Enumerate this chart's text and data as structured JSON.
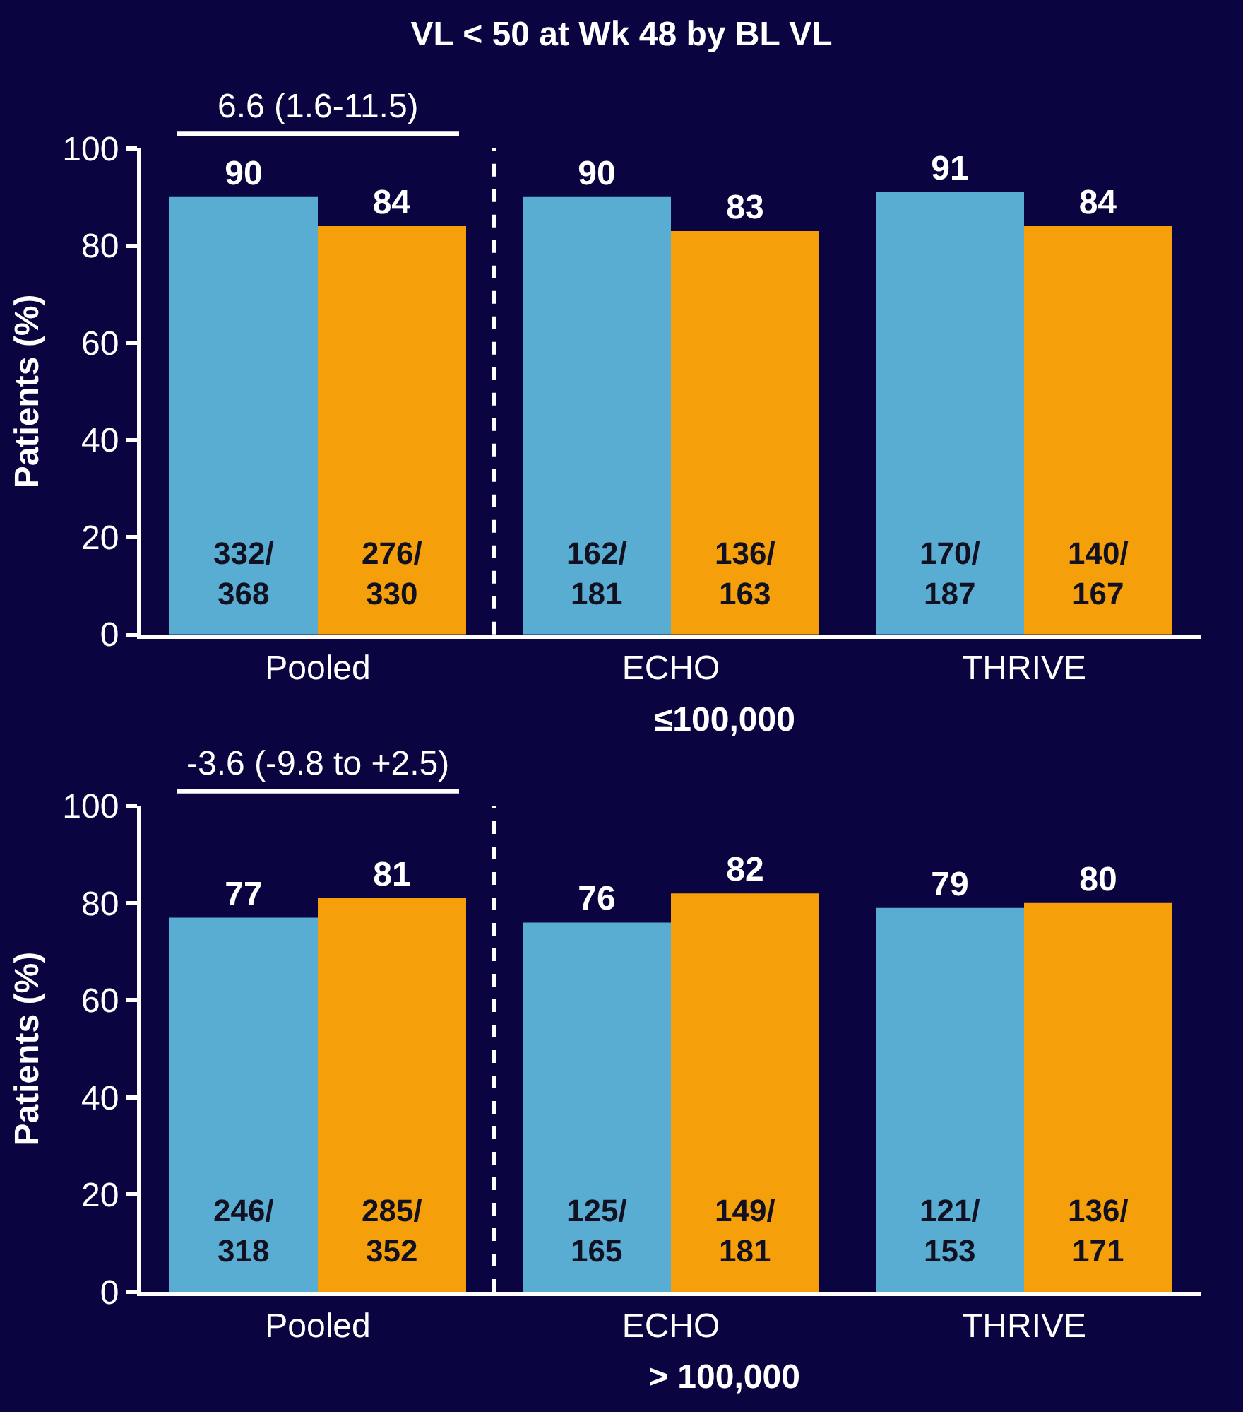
{
  "chart_data": [
    {
      "type": "bar",
      "title": "VL < 50 at Wk 48 by BL VL",
      "xlabel": "≤100,000",
      "ylabel": "Patients (%)",
      "categories": [
        "Pooled",
        "ECHO",
        "THRIVE"
      ],
      "series": [
        {
          "color": "#5aadd2",
          "values": [
            90,
            90,
            91
          ]
        },
        {
          "color": "#f5a00a",
          "values": [
            84,
            83,
            84
          ]
        }
      ],
      "ylim": [
        0,
        100
      ],
      "yticks": [
        0,
        20,
        40,
        60,
        80,
        100
      ],
      "data_labels": true,
      "annotations": [
        "6.6 (1.6-11.5)",
        "332/\n368",
        "162/\n181",
        "170/\n187",
        "276/\n330",
        "136/\n163",
        "140/\n167"
      ]
    },
    {
      "type": "bar",
      "xlabel": "> 100,000",
      "ylabel": "Patients (%)",
      "categories": [
        "Pooled",
        "ECHO",
        "THRIVE"
      ],
      "series": [
        {
          "color": "#5aadd2",
          "values": [
            77,
            76,
            79
          ]
        },
        {
          "color": "#f5a00a",
          "values": [
            81,
            82,
            80
          ]
        }
      ],
      "ylim": [
        0,
        100
      ],
      "yticks": [
        0,
        20,
        40,
        60,
        80,
        100
      ],
      "data_labels": true,
      "annotations": [
        "-3.6 (-9.8 to +2.5)",
        "246/\n318",
        "125/\n165",
        "121/\n153",
        "285/\n352",
        "149/\n181",
        "136/\n171"
      ]
    }
  ]
}
